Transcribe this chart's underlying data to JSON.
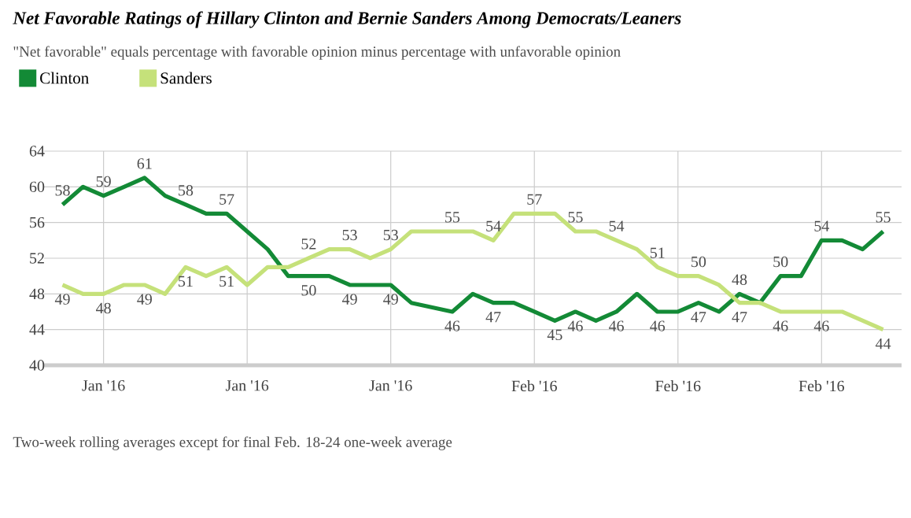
{
  "chart_data": {
    "type": "line",
    "title": "Net Favorable Ratings of Hillary Clinton and Bernie Sanders Among Democrats/Leaners",
    "subtitle": "\"Net favorable\" equals percentage with favorable opinion minus percentage with unfavorable opinion",
    "annotations": [
      "Two-week rolling averages except for final Feb. 18-24 one-week average"
    ],
    "categories": [
      null,
      null,
      "Jan '16",
      null,
      null,
      null,
      null,
      null,
      null,
      "Jan '16",
      null,
      null,
      null,
      null,
      null,
      null,
      "Jan '16",
      null,
      null,
      null,
      null,
      null,
      null,
      "Feb '16",
      null,
      null,
      null,
      null,
      null,
      null,
      "Feb '16",
      null,
      null,
      null,
      null,
      null,
      null,
      "Feb '16",
      null,
      null,
      null
    ],
    "series": [
      {
        "name": "Clinton",
        "color": "#138a36",
        "values": [
          58,
          60,
          59,
          60,
          61,
          59,
          58,
          57,
          57,
          55,
          53,
          50,
          50,
          50,
          49,
          49,
          49,
          47,
          46.5,
          46,
          48,
          47,
          47,
          46,
          45,
          46,
          45,
          46,
          48,
          46,
          46,
          47,
          46,
          48,
          47,
          50,
          50,
          54,
          54,
          53,
          55
        ],
        "value_labels": [
          "58",
          null,
          "59",
          null,
          "61",
          null,
          "58",
          null,
          "57",
          null,
          null,
          null,
          "50",
          null,
          "49",
          null,
          "49",
          null,
          null,
          "46",
          null,
          "47",
          null,
          null,
          "45",
          "46",
          null,
          "46",
          null,
          "46",
          null,
          "47",
          null,
          "48",
          null,
          "50",
          null,
          "54",
          null,
          null,
          "55"
        ]
      },
      {
        "name": "Sanders",
        "color": "#c5e17a",
        "values": [
          49,
          48,
          48,
          49,
          49,
          48,
          51,
          50,
          51,
          49,
          51,
          51,
          52,
          53,
          53,
          52,
          53,
          55,
          55,
          55,
          55,
          54,
          57,
          57,
          57,
          55,
          55,
          54,
          53,
          51,
          50,
          50,
          49,
          47,
          47,
          46,
          46,
          46,
          46,
          45,
          44
        ],
        "value_labels": [
          "49",
          null,
          "48",
          null,
          "49",
          null,
          "51",
          null,
          "51",
          null,
          null,
          null,
          "52",
          null,
          "53",
          null,
          "53",
          null,
          null,
          "55",
          null,
          "54",
          null,
          "57",
          null,
          "55",
          null,
          "54",
          null,
          "51",
          null,
          "50",
          null,
          "47",
          null,
          "46",
          null,
          "46",
          null,
          null,
          "44"
        ]
      }
    ],
    "ylim": [
      40,
      64
    ],
    "yticks": [
      40,
      44,
      48,
      52,
      56,
      60,
      64
    ],
    "grid": true,
    "legend": "top left",
    "marker": "none",
    "line_style": "solid"
  }
}
